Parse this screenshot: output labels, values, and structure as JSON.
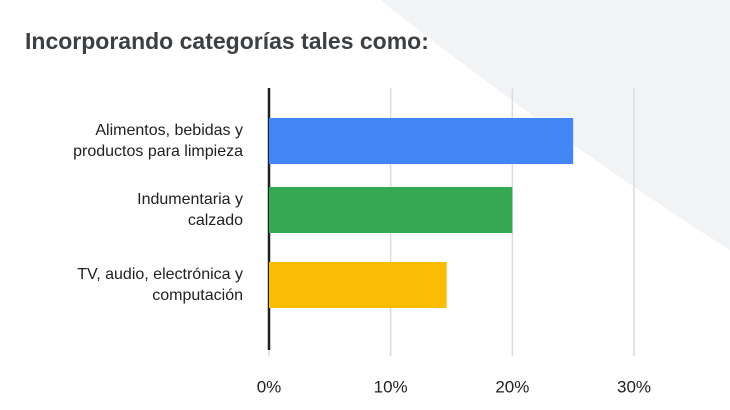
{
  "chart_data": {
    "type": "hbar",
    "title": "Incorporando categorías tales como:",
    "categories": [
      "Alimentos, bebidas y\nproductos para limpieza",
      "Indumentaria y\ncalzado",
      "TV, audio, electrónica y\ncomputación"
    ],
    "values": [
      25,
      20,
      14.6
    ],
    "colors": [
      "#4285f4",
      "#34a853",
      "#fbbc04"
    ],
    "xlim": [
      0,
      30
    ],
    "xticks": [
      {
        "value": 0,
        "label": "0%"
      },
      {
        "value": 10,
        "label": "10%"
      },
      {
        "value": 20,
        "label": "20%"
      },
      {
        "value": 30,
        "label": "30%"
      }
    ],
    "grid": true
  }
}
